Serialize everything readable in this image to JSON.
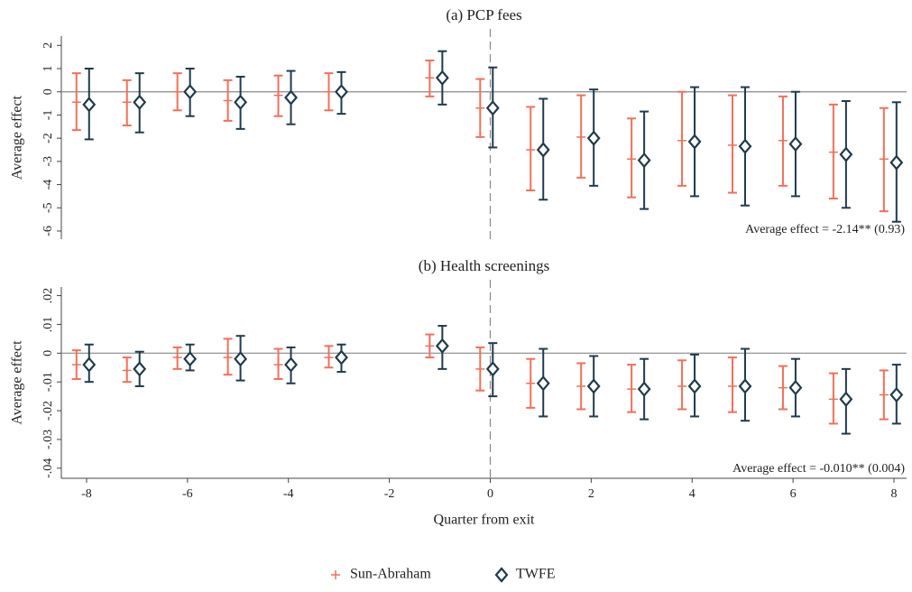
{
  "chart_data": [
    {
      "type": "errorbar",
      "title": "(a) PCP fees",
      "ylabel": "Average effect",
      "annotation": "Average effect = -2.14** (0.93)",
      "x": [
        -8,
        -7,
        -6,
        -5,
        -4,
        -3,
        -1,
        0,
        1,
        2,
        3,
        4,
        5,
        6,
        7,
        8
      ],
      "xlim": [
        -8.5,
        8.25
      ],
      "ylim": [
        -6.35,
        2.4
      ],
      "yticks": [
        -6,
        -5,
        -4,
        -3,
        -2,
        -1,
        0,
        1,
        2
      ],
      "hline": 0,
      "vline": 0,
      "series": [
        {
          "color": "#f0705a",
          "marker": "plus",
          "values": [
            -0.45,
            -0.45,
            0,
            -0.38,
            -0.15,
            0,
            0.6,
            -0.7,
            -2.5,
            -1.95,
            -2.9,
            -2.1,
            -2.3,
            -2.1,
            -2.6,
            -2.9
          ],
          "lower": [
            -1.65,
            -1.45,
            -0.8,
            -1.25,
            -1.05,
            -0.8,
            -0.2,
            -1.95,
            -4.25,
            -3.7,
            -4.55,
            -4.05,
            -4.35,
            -4.05,
            -4.6,
            -5.15
          ],
          "upper": [
            0.8,
            0.5,
            0.8,
            0.5,
            0.7,
            0.8,
            1.35,
            0.55,
            -0.65,
            -0.15,
            -1.15,
            0,
            -0.15,
            -0.2,
            -0.55,
            -0.7
          ]
        },
        {
          "color": "#1f3b4d",
          "marker": "diamond",
          "values": [
            -0.55,
            -0.45,
            0,
            -0.45,
            -0.25,
            0,
            0.6,
            -0.7,
            -2.5,
            -2.0,
            -2.95,
            -2.15,
            -2.35,
            -2.25,
            -2.7,
            -3.05
          ],
          "lower": [
            -2.05,
            -1.75,
            -1.05,
            -1.6,
            -1.4,
            -0.95,
            -0.55,
            -2.4,
            -4.65,
            -4.05,
            -5.05,
            -4.5,
            -4.9,
            -4.5,
            -5.0,
            -5.6
          ],
          "upper": [
            1.0,
            0.8,
            1.0,
            0.65,
            0.9,
            0.85,
            1.75,
            1.05,
            -0.3,
            0.1,
            -0.85,
            0.2,
            0.2,
            0,
            -0.4,
            -0.45
          ]
        }
      ]
    },
    {
      "type": "errorbar",
      "title": "(b) Health screenings",
      "ylabel": "Average effect",
      "xlabel": "Quarter from exit",
      "annotation": "Average effect = -0.010** (0.004)",
      "x": [
        -8,
        -7,
        -6,
        -5,
        -4,
        -3,
        -1,
        0,
        1,
        2,
        3,
        4,
        5,
        6,
        7,
        8
      ],
      "xlim": [
        -8.5,
        8.25
      ],
      "xticks": [
        -8,
        -6,
        -4,
        -2,
        0,
        2,
        4,
        6,
        8
      ],
      "ylim": [
        -0.0435,
        0.023
      ],
      "yticks": [
        {
          "value": -0.04,
          "label": "-.04"
        },
        {
          "value": -0.03,
          "label": "-.03"
        },
        {
          "value": -0.02,
          "label": "-.02"
        },
        {
          "value": -0.01,
          "label": "-.01"
        },
        0,
        {
          "value": 0.01,
          "label": ".01"
        },
        {
          "value": 0.02,
          "label": ".02"
        }
      ],
      "hline": 0,
      "vline": 0,
      "legend": "bottom",
      "series": [
        {
          "name": "Sun-Abraham",
          "color": "#f0705a",
          "marker": "plus",
          "values": [
            -0.004,
            -0.006,
            -0.0015,
            -0.0015,
            -0.004,
            -0.0015,
            0.0025,
            -0.0055,
            -0.0105,
            -0.0115,
            -0.0125,
            -0.0115,
            -0.0115,
            -0.012,
            -0.016,
            -0.0145
          ],
          "lower": [
            -0.009,
            -0.01,
            -0.0055,
            -0.0075,
            -0.009,
            -0.005,
            -0.0015,
            -0.013,
            -0.019,
            -0.0195,
            -0.0205,
            -0.0195,
            -0.0205,
            -0.0195,
            -0.0245,
            -0.023
          ],
          "upper": [
            0.001,
            -0.0015,
            0.002,
            0.005,
            0.0015,
            0.0025,
            0.0065,
            0.002,
            -0.002,
            -0.0035,
            -0.004,
            -0.0025,
            -0.0015,
            -0.0045,
            -0.007,
            -0.006
          ]
        },
        {
          "name": "TWFE",
          "color": "#1f3b4d",
          "marker": "diamond",
          "values": [
            -0.004,
            -0.0055,
            -0.002,
            -0.002,
            -0.004,
            -0.0015,
            0.0025,
            -0.0055,
            -0.0105,
            -0.0115,
            -0.0125,
            -0.0115,
            -0.0115,
            -0.012,
            -0.016,
            -0.0145
          ],
          "lower": [
            -0.01,
            -0.0115,
            -0.006,
            -0.0095,
            -0.0105,
            -0.0065,
            -0.0055,
            -0.015,
            -0.022,
            -0.022,
            -0.023,
            -0.022,
            -0.0235,
            -0.022,
            -0.028,
            -0.0245
          ],
          "upper": [
            0.003,
            0.0005,
            0.003,
            0.006,
            0.002,
            0.003,
            0.0095,
            0.0035,
            0.0015,
            -0.001,
            -0.002,
            -0.0005,
            0.0015,
            -0.002,
            -0.0055,
            -0.004
          ]
        }
      ]
    }
  ]
}
